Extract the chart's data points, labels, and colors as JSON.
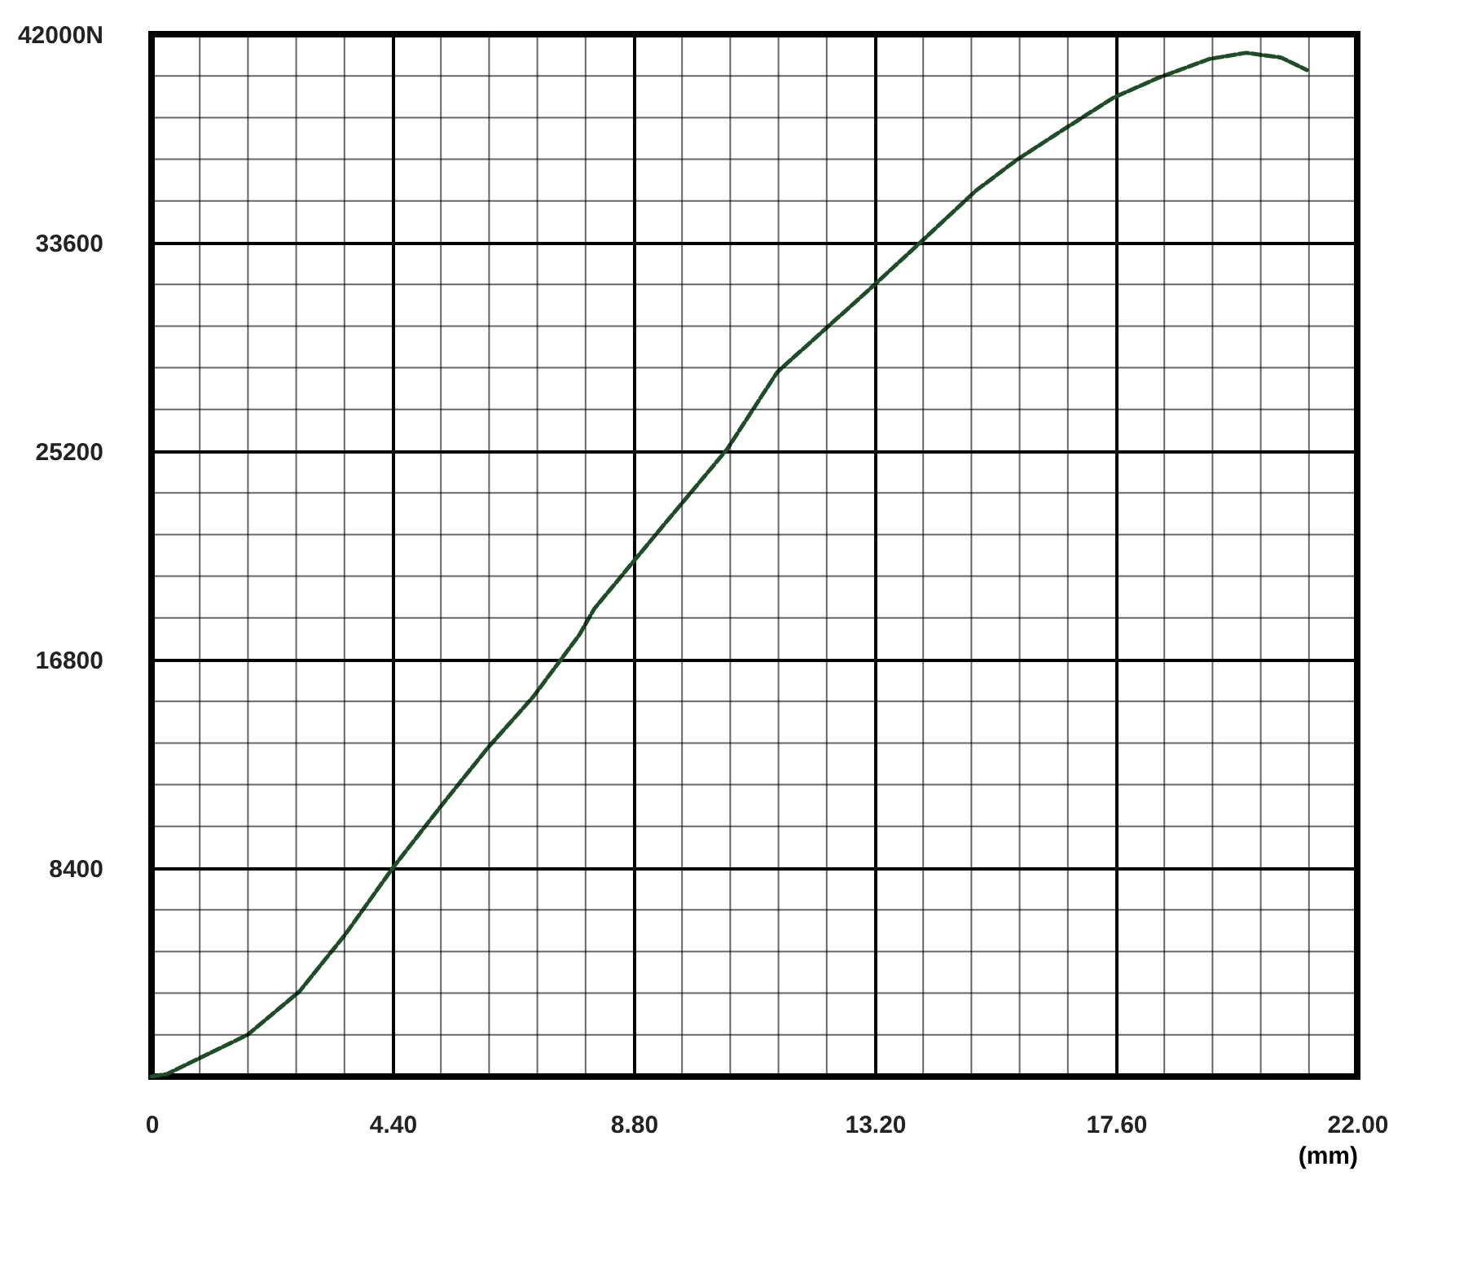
{
  "chart_data": {
    "type": "line",
    "xlabel": "(mm)",
    "xlim": [
      0,
      22
    ],
    "ylim": [
      0,
      42000
    ],
    "xticks": [
      {
        "value": 0,
        "label": "0"
      },
      {
        "value": 4.4,
        "label": "4.40"
      },
      {
        "value": 8.8,
        "label": "8.80"
      },
      {
        "value": 13.2,
        "label": "13.20"
      },
      {
        "value": 17.6,
        "label": "17.60"
      },
      {
        "value": 22,
        "label": "22.00"
      }
    ],
    "yticks": [
      8400,
      16800,
      25200,
      33600,
      {
        "value": 42000,
        "label": "42000N"
      }
    ],
    "grid": true,
    "line_style": "dashed",
    "marker": "none",
    "series": [
      {
        "color": "#1e4d28",
        "x": [
          0,
          0.28,
          1.75,
          2.7,
          3.54,
          4.4,
          5.29,
          6.13,
          6.96,
          7.8,
          8.08,
          9.39,
          10.5,
          11.42,
          13.09,
          14.01,
          15.04,
          15.79,
          16.57,
          17.55,
          18.38,
          19.3,
          19.97,
          20.61,
          21.08
        ],
        "values": [
          0,
          100,
          1680,
          3430,
          5740,
          8400,
          10920,
          13230,
          15290,
          17780,
          18850,
          22340,
          25270,
          28390,
          31700,
          33570,
          35690,
          36940,
          38060,
          39440,
          40250,
          41000,
          41250,
          41060,
          40560
        ]
      }
    ]
  }
}
